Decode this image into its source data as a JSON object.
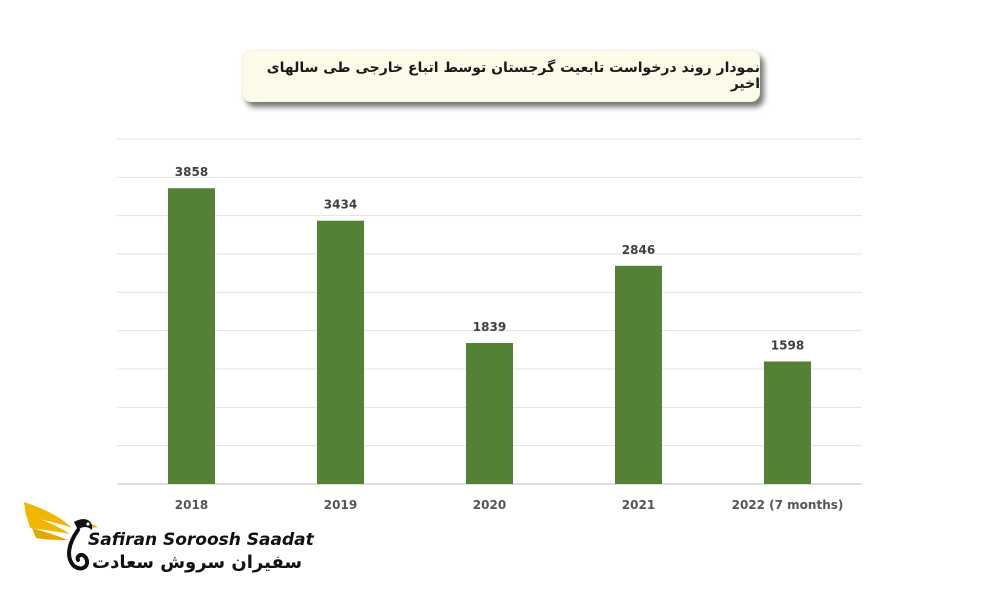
{
  "header": {
    "title": "نمودار روند درخواست تابعیت گرجستان توسط اتباع خارجی طی سالهای اخیر"
  },
  "chart_data": {
    "type": "bar",
    "categories": [
      "2018",
      "2019",
      "2020",
      "2021",
      "2022 (7 months)"
    ],
    "values": [
      3858,
      3434,
      1839,
      2846,
      1598
    ],
    "ylim": [
      0,
      4500
    ],
    "grid": true,
    "bar_color": "#538135"
  },
  "logo": {
    "name_en": "Safiran Soroosh Saadat",
    "name_fa": "سفیران سروش سعادت",
    "accent_color": "#f2b705"
  }
}
